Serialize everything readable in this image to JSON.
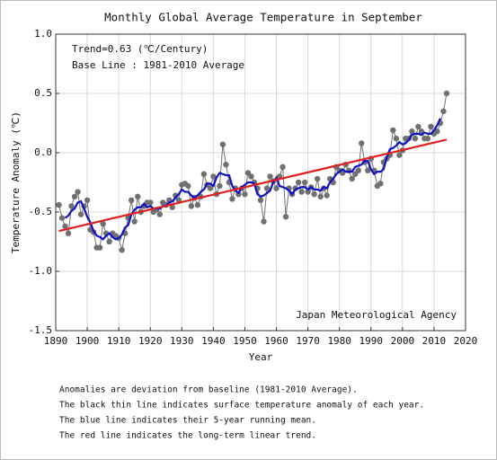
{
  "chart_data": {
    "type": "line",
    "title": "Monthly Global Average Temperature in September",
    "xlabel": "Year",
    "ylabel": "Temperature Anomaly (℃)",
    "annotations": [
      "Trend=0.63 (℃/Century)",
      "Base Line : 1981-2010 Average",
      "Japan Meteorological Agency"
    ],
    "xlim": [
      1890,
      2020
    ],
    "xticks": [
      1890,
      1900,
      1910,
      1920,
      1930,
      1940,
      1950,
      1960,
      1970,
      1980,
      1990,
      2000,
      2010,
      2020
    ],
    "ylim": [
      -1.5,
      1.0
    ],
    "yticks": [
      {
        "value": -1.5,
        "label": "-1.5"
      },
      {
        "value": -1.0,
        "label": "-1.0"
      },
      {
        "value": -0.5,
        "label": "-0.5"
      },
      {
        "value": 0.0,
        "label": "0.0"
      },
      {
        "value": 0.5,
        "label": "0.5"
      },
      {
        "value": 1.0,
        "label": "1.0"
      }
    ],
    "grid": true,
    "series": [
      {
        "color": "#707070",
        "markers": true,
        "x": [
          1891,
          1892,
          1893,
          1894,
          1895,
          1896,
          1897,
          1898,
          1899,
          1900,
          1901,
          1902,
          1903,
          1904,
          1905,
          1906,
          1907,
          1908,
          1909,
          1910,
          1911,
          1912,
          1913,
          1914,
          1915,
          1916,
          1917,
          1918,
          1919,
          1920,
          1921,
          1922,
          1923,
          1924,
          1925,
          1926,
          1927,
          1928,
          1929,
          1930,
          1931,
          1932,
          1933,
          1934,
          1935,
          1936,
          1937,
          1938,
          1939,
          1940,
          1941,
          1942,
          1943,
          1944,
          1945,
          1946,
          1947,
          1948,
          1949,
          1950,
          1951,
          1952,
          1953,
          1954,
          1955,
          1956,
          1957,
          1958,
          1959,
          1960,
          1961,
          1962,
          1963,
          1964,
          1965,
          1966,
          1967,
          1968,
          1969,
          1970,
          1971,
          1972,
          1973,
          1974,
          1975,
          1976,
          1977,
          1978,
          1979,
          1980,
          1981,
          1982,
          1983,
          1984,
          1985,
          1986,
          1987,
          1988,
          1989,
          1990,
          1991,
          1992,
          1993,
          1994,
          1995,
          1996,
          1997,
          1998,
          1999,
          2000,
          2001,
          2002,
          2003,
          2004,
          2005,
          2006,
          2007,
          2008,
          2009,
          2010,
          2011,
          2012,
          2013,
          2014
        ],
        "values": [
          -0.44,
          -0.55,
          -0.62,
          -0.68,
          -0.45,
          -0.37,
          -0.33,
          -0.52,
          -0.45,
          -0.4,
          -0.65,
          -0.67,
          -0.8,
          -0.8,
          -0.6,
          -0.68,
          -0.75,
          -0.68,
          -0.7,
          -0.72,
          -0.82,
          -0.68,
          -0.55,
          -0.4,
          -0.58,
          -0.37,
          -0.5,
          -0.45,
          -0.42,
          -0.42,
          -0.5,
          -0.48,
          -0.52,
          -0.42,
          -0.44,
          -0.4,
          -0.46,
          -0.36,
          -0.4,
          -0.27,
          -0.26,
          -0.28,
          -0.45,
          -0.38,
          -0.44,
          -0.37,
          -0.18,
          -0.27,
          -0.3,
          -0.2,
          -0.35,
          -0.28,
          0.07,
          -0.1,
          -0.25,
          -0.39,
          -0.3,
          -0.35,
          -0.3,
          -0.35,
          -0.17,
          -0.2,
          -0.25,
          -0.3,
          -0.4,
          -0.58,
          -0.3,
          -0.2,
          -0.24,
          -0.3,
          -0.2,
          -0.12,
          -0.54,
          -0.3,
          -0.35,
          -0.3,
          -0.25,
          -0.33,
          -0.25,
          -0.33,
          -0.29,
          -0.35,
          -0.22,
          -0.37,
          -0.3,
          -0.36,
          -0.22,
          -0.25,
          -0.12,
          -0.15,
          -0.17,
          -0.1,
          -0.15,
          -0.22,
          -0.18,
          -0.15,
          0.08,
          -0.08,
          -0.15,
          -0.05,
          -0.15,
          -0.28,
          -0.26,
          -0.08,
          -0.05,
          -0.02,
          0.19,
          0.12,
          -0.02,
          0.02,
          0.12,
          0.12,
          0.18,
          0.12,
          0.22,
          0.18,
          0.12,
          0.12,
          0.22,
          0.16,
          0.18,
          0.25,
          0.35,
          0.5
        ]
      },
      {
        "color": "#1010c8",
        "markers": false,
        "x": [
          1891,
          1892,
          1893,
          1894,
          1895,
          1896,
          1897,
          1898,
          1899,
          1900,
          1901,
          1902,
          1903,
          1904,
          1905,
          1906,
          1907,
          1908,
          1909,
          1910,
          1911,
          1912,
          1913,
          1914,
          1915,
          1916,
          1917,
          1918,
          1919,
          1920,
          1921,
          1922,
          1923,
          1924,
          1925,
          1926,
          1927,
          1928,
          1929,
          1930,
          1931,
          1932,
          1933,
          1934,
          1935,
          1936,
          1937,
          1938,
          1939,
          1940,
          1941,
          1942,
          1943,
          1944,
          1945,
          1946,
          1947,
          1948,
          1949,
          1950,
          1951,
          1952,
          1953,
          1954,
          1955,
          1956,
          1957,
          1958,
          1959,
          1960,
          1961,
          1962,
          1963,
          1964,
          1965,
          1966,
          1967,
          1968,
          1969,
          1970,
          1971,
          1972,
          1973,
          1974,
          1975,
          1976,
          1977,
          1978,
          1979,
          1980,
          1981,
          1982,
          1983,
          1984,
          1985,
          1986,
          1987,
          1988,
          1989,
          1990,
          1991,
          1992,
          1993,
          1994,
          1995,
          1996,
          1997,
          1998,
          1999,
          2000,
          2001,
          2002,
          2003,
          2004,
          2005,
          2006,
          2007,
          2008,
          2009,
          2010,
          2011,
          2012,
          2013,
          2014
        ],
        "values": [
          null,
          null,
          -0.55,
          -0.53,
          -0.49,
          -0.47,
          -0.42,
          -0.41,
          -0.47,
          -0.54,
          -0.59,
          -0.66,
          -0.7,
          -0.71,
          -0.73,
          -0.7,
          -0.68,
          -0.71,
          -0.73,
          -0.72,
          -0.69,
          -0.63,
          -0.61,
          -0.52,
          -0.48,
          -0.46,
          -0.46,
          -0.43,
          -0.46,
          -0.45,
          -0.47,
          -0.47,
          -0.47,
          -0.45,
          -0.45,
          -0.42,
          -0.41,
          -0.38,
          -0.35,
          -0.31,
          -0.33,
          -0.33,
          -0.36,
          -0.38,
          -0.36,
          -0.33,
          -0.31,
          -0.26,
          -0.26,
          -0.28,
          -0.21,
          -0.17,
          -0.18,
          -0.19,
          -0.19,
          -0.28,
          -0.32,
          -0.34,
          -0.29,
          -0.27,
          -0.25,
          -0.25,
          -0.26,
          -0.35,
          -0.37,
          -0.36,
          -0.34,
          -0.32,
          -0.25,
          -0.21,
          -0.28,
          -0.29,
          -0.3,
          -0.32,
          -0.35,
          -0.31,
          -0.3,
          -0.29,
          -0.29,
          -0.31,
          -0.29,
          -0.31,
          -0.31,
          -0.32,
          -0.29,
          -0.3,
          -0.25,
          -0.22,
          -0.18,
          -0.16,
          -0.14,
          -0.16,
          -0.16,
          -0.16,
          -0.12,
          -0.11,
          -0.1,
          -0.07,
          -0.07,
          -0.14,
          -0.18,
          -0.16,
          -0.16,
          -0.14,
          -0.04,
          0.03,
          0.04,
          0.06,
          0.09,
          0.07,
          0.08,
          0.11,
          0.15,
          0.16,
          0.16,
          0.15,
          0.17,
          0.16,
          0.16,
          0.19,
          0.23,
          0.29,
          null,
          null
        ]
      },
      {
        "color": "#e02020",
        "markers": false,
        "x": [
          1891,
          2014
        ],
        "values": [
          -0.66,
          0.11
        ]
      }
    ]
  },
  "notes": [
    "Anomalies are deviation from baseline (1981-2010 Average).",
    "The black thin line indicates surface temperature anomaly of each year.",
    "The blue line indicates their 5-year running mean.",
    "The red line indicates the long-term linear trend."
  ]
}
